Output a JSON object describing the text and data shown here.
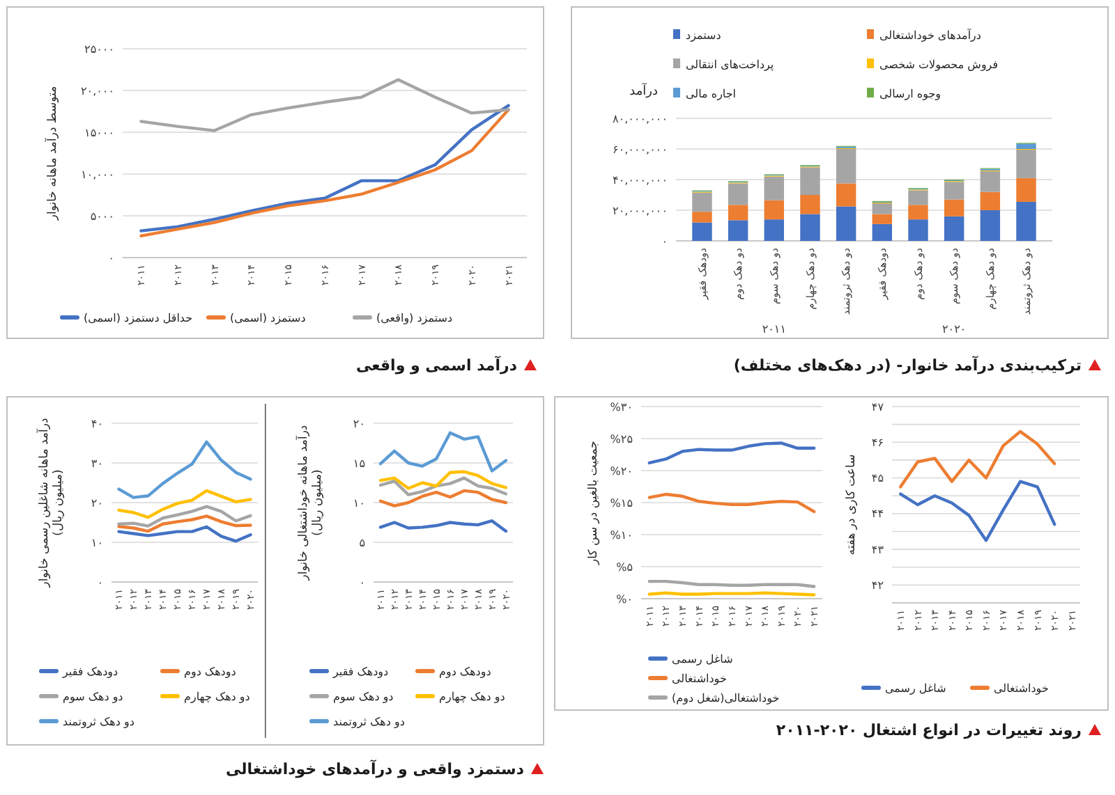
{
  "chart_data": [
    {
      "type": "line",
      "title": "درآمد اسمی و واقعی",
      "ylabel": "متوسط درآمد ماهانه خانوار",
      "categories": [
        "۲۰۱۱",
        "۲۰۱۲",
        "۲۰۱۳",
        "۲۰۱۴",
        "۲۰۱۵",
        "۲۰۱۶",
        "۲۰۱۷",
        "۲۰۱۸",
        "۲۰۱۹",
        "۲۰۲۰",
        "۲۰۲۱"
      ],
      "series": [
        {
          "name": "حداقل دستمزد (اسمی)",
          "color": "#4472c4",
          "values": [
            3200,
            3700,
            4600,
            5600,
            6500,
            7100,
            9200,
            9200,
            11100,
            15300,
            18200
          ]
        },
        {
          "name": "دستمزد (اسمی)",
          "color": "#ed7d31",
          "values": [
            2600,
            3400,
            4200,
            5300,
            6200,
            6800,
            7600,
            9000,
            10500,
            12800,
            17700
          ]
        },
        {
          "name": "دستمزد (واقعی)",
          "color": "#a5a5a5",
          "values": [
            16300,
            15700,
            15200,
            17100,
            17900,
            18600,
            19200,
            21300,
            19200,
            17300,
            17700
          ]
        }
      ],
      "ylim": [
        0,
        25000
      ],
      "yticks": [
        {
          "value": 0,
          "label": "۰"
        },
        {
          "value": 5000,
          "label": "۵۰۰۰"
        },
        {
          "value": 10000,
          "label": "۱۰,۰۰۰"
        },
        {
          "value": 15000,
          "label": "۱۵۰۰۰"
        },
        {
          "value": 20000,
          "label": "۲۰,۰۰۰"
        },
        {
          "value": 25000,
          "label": "۲۵۰۰۰"
        }
      ],
      "grid": "y",
      "legend": "bottom"
    },
    {
      "type": "bar",
      "stacked": true,
      "title": "ترکیب‌بندی درآمد خانوار- (در دهک‌های مختلف)",
      "ylabel": "درآمد",
      "categories": [
        "دودهک فقیر",
        "دو دهک دوم",
        "دو دهک سوم",
        "دو دهک چهارم",
        "دو دهک ثروتمند",
        "دودهک فقیر",
        "دو دهک دوم",
        "دو دهک سوم",
        "دو دهک چهارم",
        "دو دهک ثروتمند"
      ],
      "series": [
        {
          "name": "دستمزد",
          "color": "#4472c4",
          "values": [
            12000000,
            13500000,
            14000000,
            17500000,
            22500000,
            11000000,
            14000000,
            16000000,
            20000000,
            25500000
          ]
        },
        {
          "name": "درآمدهای خوداشتغالی",
          "color": "#ed7d31",
          "values": [
            7000000,
            10000000,
            12500000,
            12500000,
            15000000,
            6500000,
            9500000,
            11000000,
            12000000,
            15500000
          ]
        },
        {
          "name": "پرداخت‌های انتقالی",
          "color": "#a5a5a5",
          "values": [
            12500000,
            14000000,
            15500000,
            18000000,
            22500000,
            7000000,
            9500000,
            11500000,
            13500000,
            18500000
          ]
        },
        {
          "name": "فروش محصولات شخصی",
          "color": "#ffc000",
          "values": [
            500000,
            500000,
            500000,
            500000,
            500000,
            500000,
            500000,
            500000,
            500000,
            500000
          ]
        },
        {
          "name": "اجاره مالی",
          "color": "#5b9bd5",
          "values": [
            500000,
            500000,
            500000,
            500000,
            1000000,
            500000,
            500000,
            500000,
            1000000,
            3500000
          ]
        },
        {
          "name": "وجوه ارسالی",
          "color": "#70ad47",
          "values": [
            500000,
            500000,
            500000,
            500000,
            500000,
            500000,
            500000,
            500000,
            500000,
            500000
          ]
        }
      ],
      "annotations": [
        "۲۰۱۱",
        "۲۰۲۰"
      ],
      "ylim": [
        0,
        80000000
      ],
      "yticks": [
        {
          "value": 0,
          "label": "۰"
        },
        {
          "value": 20000000,
          "label": "۲۰,۰۰۰,۰۰۰"
        },
        {
          "value": 40000000,
          "label": "۴۰,۰۰۰,۰۰۰"
        },
        {
          "value": 60000000,
          "label": "۶۰,۰۰۰,۰۰۰"
        },
        {
          "value": 80000000,
          "label": "۸۰,۰۰۰,۰۰۰"
        }
      ],
      "grid": "y",
      "legend": "top"
    },
    {
      "type": "line",
      "title": "دستمزد واقعی و درآمدهای خوداشتغالی",
      "ylabel": "درآمد ماهانه شاغلین رسمی خانوار\n(میلیون ریال)",
      "categories": [
        "۲۰۱۱",
        "۲۰۱۲",
        "۲۰۱۳",
        "۲۰۱۴",
        "۲۰۱۵",
        "۲۰۱۶",
        "۲۰۱۷",
        "۲۰۱۸",
        "۲۰۱۹",
        "۲۰۲۰"
      ],
      "series": [
        {
          "name": "دودهک فقیر",
          "color": "#4472c4",
          "values": [
            12.7,
            12.2,
            11.7,
            12.2,
            12.7,
            12.7,
            13.9,
            11.5,
            10.3,
            11.9
          ]
        },
        {
          "name": "دودهک دوم",
          "color": "#ed7d31",
          "values": [
            14.0,
            13.6,
            12.8,
            14.6,
            15.2,
            15.7,
            16.6,
            15.2,
            14.2,
            14.3
          ]
        },
        {
          "name": "دو دهک سوم",
          "color": "#a5a5a5",
          "values": [
            14.6,
            14.8,
            14.1,
            16.1,
            16.9,
            17.8,
            19.0,
            17.8,
            15.4,
            16.7
          ]
        },
        {
          "name": "دو دهک چهارم",
          "color": "#ffc000",
          "values": [
            18.1,
            17.5,
            16.3,
            18.3,
            19.8,
            20.6,
            23.0,
            21.6,
            20.2,
            20.8
          ]
        },
        {
          "name": "دو دهک ثروتمند",
          "color": "#5b9bd5",
          "values": [
            23.4,
            21.3,
            21.7,
            24.8,
            27.4,
            29.7,
            35.3,
            30.7,
            27.6,
            25.9
          ]
        }
      ],
      "ylim": [
        0,
        40
      ],
      "yticks": [
        {
          "value": 0,
          "label": "۰"
        },
        {
          "value": 10,
          "label": "۱۰"
        },
        {
          "value": 20,
          "label": "۲۰"
        },
        {
          "value": 30,
          "label": "۳۰"
        },
        {
          "value": 40,
          "label": "۴۰"
        }
      ],
      "grid": "y",
      "legend": "bottom"
    },
    {
      "type": "line",
      "ylabel": "درآمد ماهانه خوداشتغالی خانوار\n(میلیون ریال)",
      "categories": [
        "۲۰۱۱",
        "۲۰۱۲",
        "۲۰۱۳",
        "۲۰۱۴",
        "۲۰۱۵",
        "۲۰۱۶",
        "۲۰۱۷",
        "۲۰۱۸",
        "۲۰۱۹",
        "۲۰۲۰"
      ],
      "series": [
        {
          "name": "دودهک فقیر",
          "color": "#4472c4",
          "values": [
            6.9,
            7.5,
            6.8,
            6.9,
            7.1,
            7.5,
            7.3,
            7.2,
            7.7,
            6.4
          ]
        },
        {
          "name": "دودهک دوم",
          "color": "#ed7d31",
          "values": [
            10.2,
            9.6,
            10.0,
            10.8,
            11.3,
            10.7,
            11.5,
            11.3,
            10.4,
            10.0
          ]
        },
        {
          "name": "دو دهک سوم",
          "color": "#a5a5a5",
          "values": [
            12.2,
            12.7,
            11.0,
            11.4,
            12.1,
            12.4,
            13.1,
            12.1,
            11.8,
            11.1
          ]
        },
        {
          "name": "دو دهک چهارم",
          "color": "#ffc000",
          "values": [
            12.8,
            13.1,
            11.8,
            12.5,
            12.1,
            13.8,
            13.9,
            13.4,
            12.4,
            11.9
          ]
        },
        {
          "name": "دو دهک ثروتمند",
          "color": "#5b9bd5",
          "values": [
            14.9,
            16.5,
            15.0,
            14.6,
            15.5,
            18.8,
            18.0,
            18.3,
            14.0,
            15.3
          ]
        }
      ],
      "ylim": [
        0,
        20
      ],
      "yticks": [
        {
          "value": 0,
          "label": "۰"
        },
        {
          "value": 5,
          "label": "۵"
        },
        {
          "value": 10,
          "label": "۱۰"
        },
        {
          "value": 15,
          "label": "۱۵"
        },
        {
          "value": 20,
          "label": "۲۰"
        }
      ],
      "grid": "y",
      "legend": "bottom"
    },
    {
      "type": "line",
      "title": "روند تغییرات در انواع اشتغال ۲۰۲۰-۲۰۱۱",
      "ylabel": "ساعت کاری در هفته",
      "categories": [
        "۲۰۱۱",
        "۲۰۱۲",
        "۲۰۱۳",
        "۲۰۱۴",
        "۲۰۱۵",
        "۲۰۱۶",
        "۲۰۱۷",
        "۲۰۱۸",
        "۲۰۱۹",
        "۲۰۲۰",
        "۲۰۲۱"
      ],
      "series": [
        {
          "name": "شاغل رسمی",
          "color": "#4472c4",
          "values": [
            44.55,
            44.25,
            44.5,
            44.3,
            43.95,
            43.25,
            44.1,
            44.9,
            44.75,
            43.7,
            null
          ]
        },
        {
          "name": "خوداشتغالی",
          "color": "#ed7d31",
          "values": [
            44.75,
            45.45,
            45.55,
            44.9,
            45.5,
            45.0,
            45.9,
            46.3,
            45.95,
            45.4,
            null
          ]
        }
      ],
      "ylim": [
        41.5,
        47
      ],
      "yticks": [
        {
          "value": 41.5,
          "label": null
        },
        {
          "value": 42,
          "label": "۴۲"
        },
        {
          "value": 42.5,
          "label": null
        },
        {
          "value": 43,
          "label": "۴۳"
        },
        {
          "value": 43.5,
          "label": null
        },
        {
          "value": 44,
          "label": "۴۴"
        },
        {
          "value": 44.5,
          "label": null
        },
        {
          "value": 45,
          "label": "۴۵"
        },
        {
          "value": 45.5,
          "label": null
        },
        {
          "value": 46,
          "label": "۴۶"
        },
        {
          "value": 46.5,
          "label": null
        },
        {
          "value": 47,
          "label": "۴۷"
        }
      ],
      "grid": "y",
      "legend": "bottom"
    },
    {
      "type": "line",
      "ylabel": "جمعیت بالغین در سن کار",
      "categories": [
        "۲۰۱۱",
        "۲۰۱۲",
        "۲۰۱۳",
        "۲۰۱۴",
        "۲۰۱۵",
        "۲۰۱۶",
        "۲۰۱۷",
        "۲۰۱۸",
        "۲۰۱۹",
        "۲۰۲۰",
        "۲۰۲۱"
      ],
      "series": [
        {
          "name": "شاغل رسمی",
          "color": "#4472c4",
          "values": [
            21.2,
            21.8,
            23.0,
            23.3,
            23.2,
            23.2,
            23.8,
            24.2,
            24.3,
            23.5,
            23.5
          ]
        },
        {
          "name": "خوداشتغالی",
          "color": "#ed7d31",
          "values": [
            15.8,
            16.3,
            16.0,
            15.2,
            14.9,
            14.7,
            14.7,
            15.0,
            15.2,
            15.1,
            13.6
          ]
        },
        {
          "name": "خوداشتغالی(شغل دوم)",
          "color": "#a5a5a5",
          "values": [
            2.7,
            2.7,
            2.5,
            2.2,
            2.2,
            2.1,
            2.1,
            2.2,
            2.2,
            2.2,
            1.9
          ]
        },
        {
          "color": "#ffc000",
          "values": [
            0.7,
            0.9,
            0.7,
            0.7,
            0.8,
            0.8,
            0.8,
            0.9,
            0.8,
            0.7,
            0.6
          ]
        }
      ],
      "ylim": [
        0,
        30
      ],
      "yticks": [
        {
          "value": 0,
          "label": "%۰"
        },
        {
          "value": 5,
          "label": "%۵"
        },
        {
          "value": 10,
          "label": "%۱۰"
        },
        {
          "value": 15,
          "label": "%۱۵"
        },
        {
          "value": 20,
          "label": "%۲۰"
        },
        {
          "value": 25,
          "label": "%۲۵"
        },
        {
          "value": 30,
          "label": "%۳۰"
        }
      ],
      "grid": "y",
      "legend": "bottom"
    }
  ]
}
